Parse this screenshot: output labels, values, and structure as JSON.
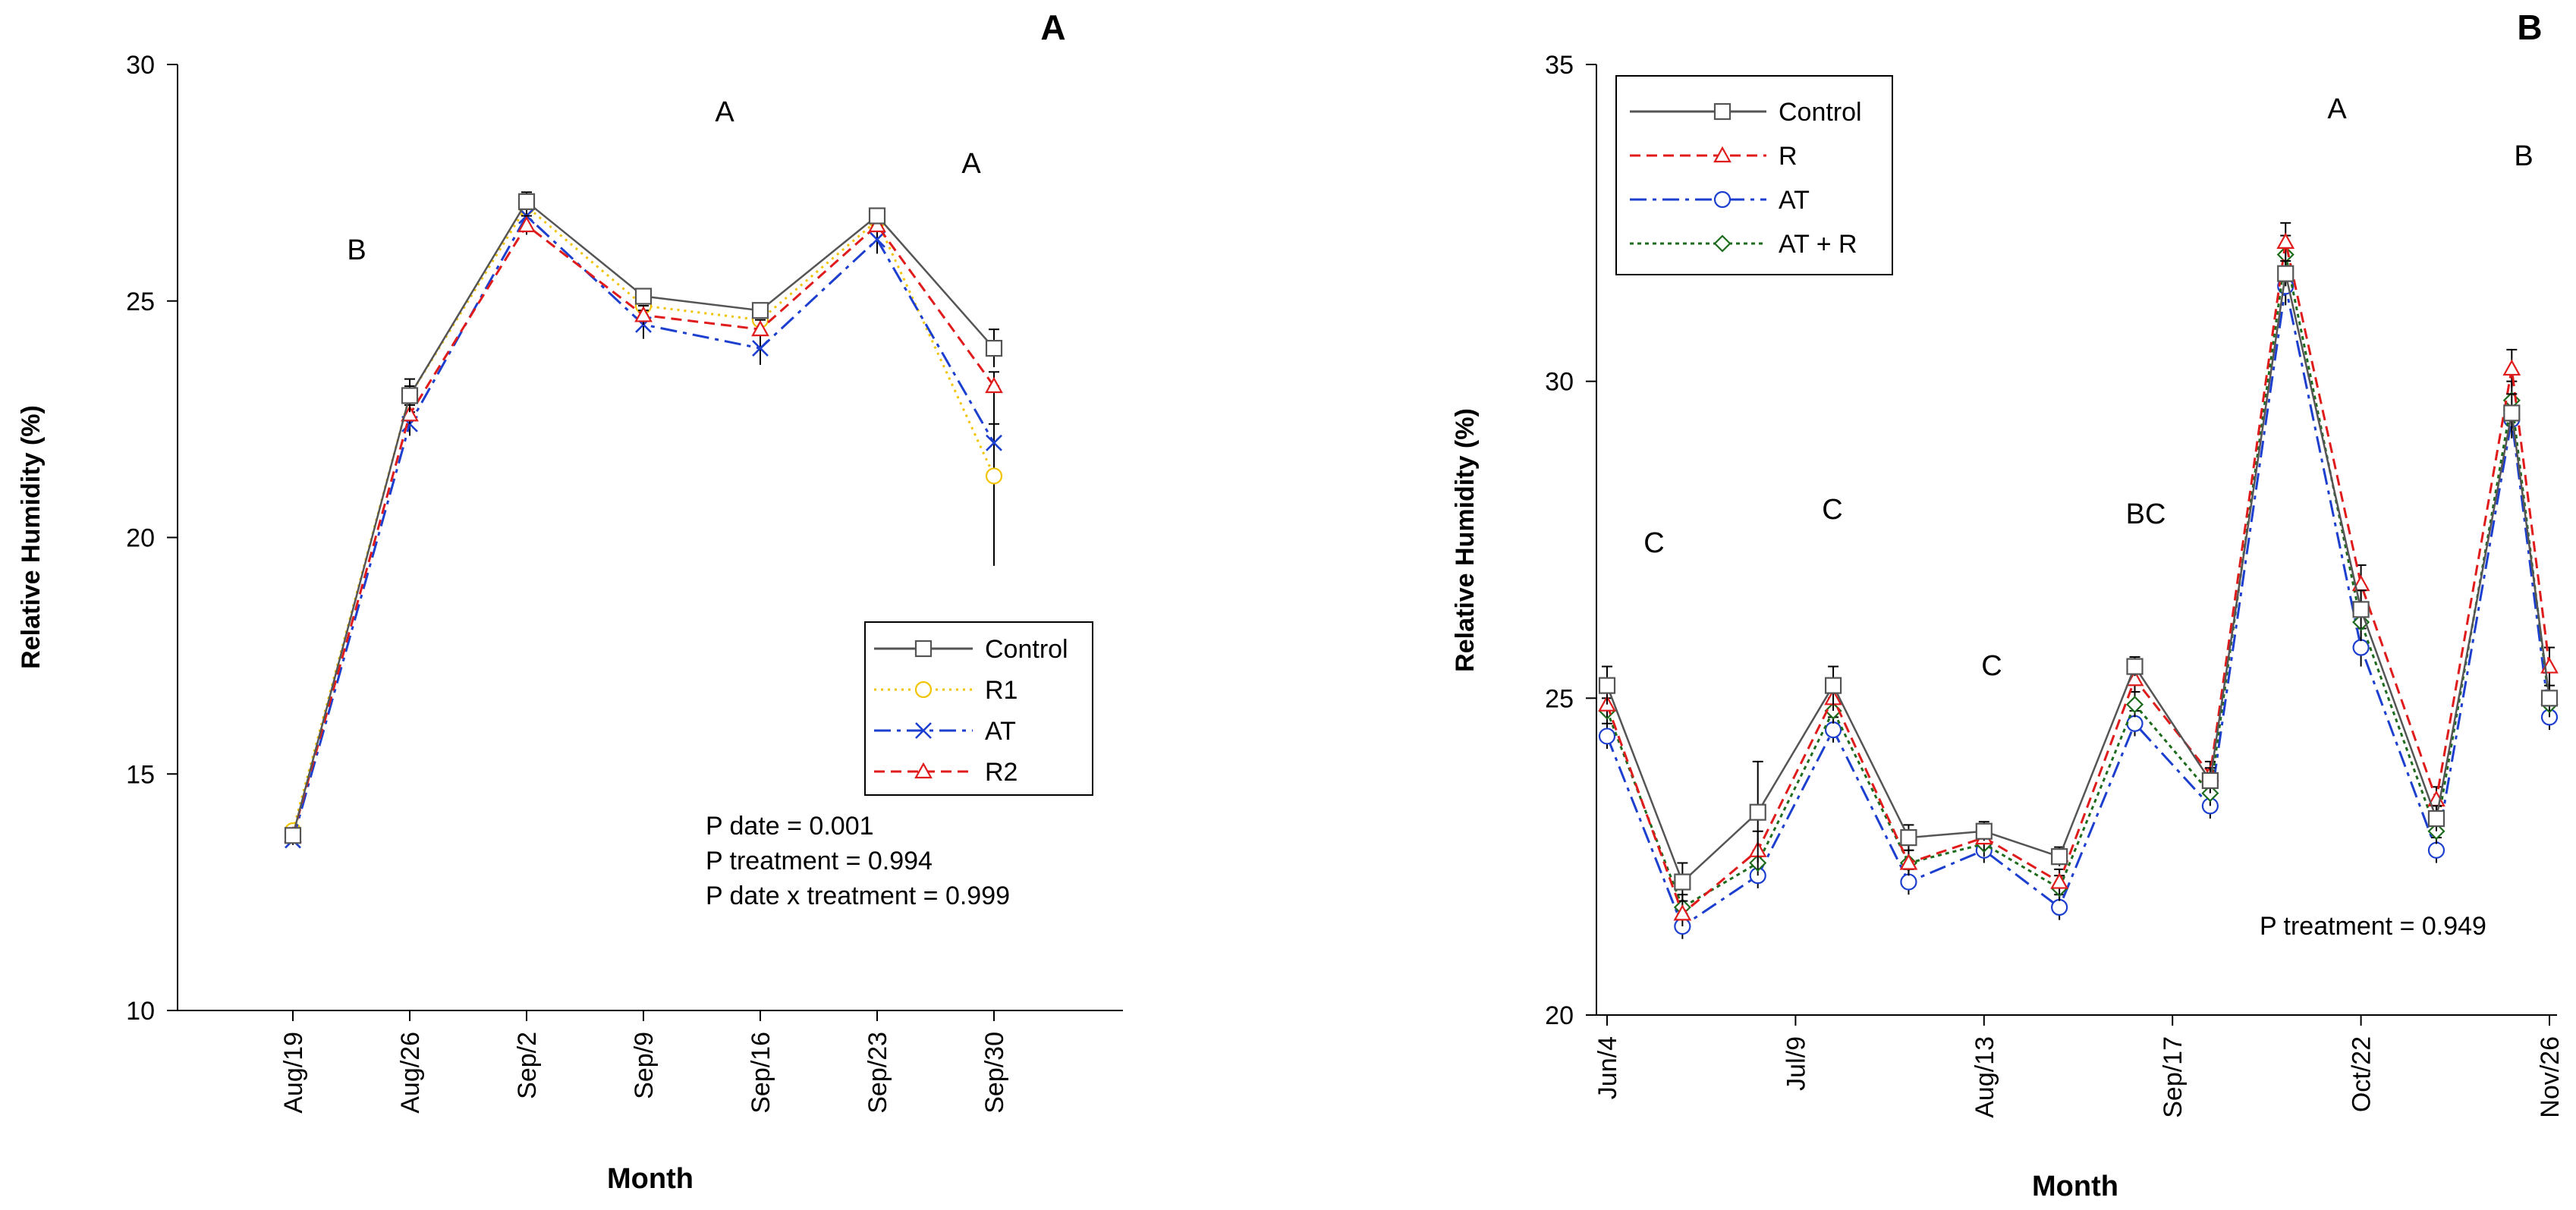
{
  "chart_data": [
    {
      "panel": "A",
      "type": "line",
      "xlabel": "Month",
      "ylabel": "Relative Humidity (%)",
      "ylim": [
        10,
        30
      ],
      "yticks": [
        10,
        15,
        20,
        25,
        30
      ],
      "categories": [
        "Aug/19",
        "Aug/26",
        "Sep/2",
        "Sep/9",
        "Sep/16",
        "Sep/23",
        "Sep/30"
      ],
      "letters": [
        "B",
        "A",
        "A"
      ],
      "legend_position": "lower-right",
      "stats": [
        "P date = 0.001",
        "P treatment = 0.994",
        "P date x treatment = 0.999"
      ],
      "series": [
        {
          "name": "Control",
          "marker": "square",
          "color": "#555555",
          "dash": "",
          "values": [
            13.7,
            23.0,
            27.1,
            25.1,
            24.8,
            26.8,
            24.0
          ],
          "err": [
            0.15,
            0.35,
            0.2,
            0.15,
            0.15,
            0.15,
            0.4
          ]
        },
        {
          "name": "R1",
          "marker": "circle",
          "color": "#f2c300",
          "dash": "3 6",
          "values": [
            13.8,
            23.0,
            27.0,
            24.9,
            24.6,
            26.7,
            21.3
          ],
          "err": [
            0.1,
            0.2,
            0.2,
            0.2,
            0.2,
            0.2,
            1.9
          ]
        },
        {
          "name": "AT",
          "marker": "x",
          "color": "#1c3fcf",
          "dash": "22 8 5 8",
          "values": [
            13.6,
            22.4,
            26.8,
            24.5,
            24.0,
            26.3,
            22.0
          ],
          "err": [
            0.1,
            0.25,
            0.2,
            0.3,
            0.35,
            0.3,
            0.4
          ]
        },
        {
          "name": "R2",
          "marker": "triangle",
          "color": "#e01b1b",
          "dash": "14 8",
          "values": [
            13.7,
            22.6,
            26.6,
            24.7,
            24.4,
            26.6,
            23.2
          ],
          "err": [
            0.1,
            0.2,
            0.2,
            0.2,
            0.2,
            0.2,
            0.3
          ]
        }
      ]
    },
    {
      "panel": "B",
      "type": "line",
      "xlabel": "Month",
      "ylabel": "Relative Humidity (%)",
      "ylim": [
        20,
        35
      ],
      "yticks": [
        20,
        25,
        30,
        35
      ],
      "x": [
        "Jun/4",
        "Jun/18",
        "Jul/2",
        "Jul/16",
        "Jul/30",
        "Aug/13",
        "Aug/27",
        "Sep/10",
        "Sep/24",
        "Oct/8",
        "Oct/22",
        "Nov/5",
        "Nov/19",
        "Nov/26"
      ],
      "xticks": [
        "Jun/4",
        "Jul/9",
        "Aug/13",
        "Sep/17",
        "Oct/22",
        "Nov/26"
      ],
      "xticks_day": [
        0,
        35,
        70,
        105,
        140,
        175
      ],
      "x_day": [
        0,
        14,
        28,
        42,
        56,
        70,
        84,
        98,
        112,
        126,
        140,
        154,
        168,
        175
      ],
      "letters": [
        "C",
        "C",
        "C",
        "BC",
        "A",
        "B"
      ],
      "legend_position": "top-left",
      "stats": [
        "P treatment = 0.949"
      ],
      "series": [
        {
          "name": "Control",
          "marker": "square",
          "color": "#555555",
          "dash": "",
          "values": [
            25.2,
            22.1,
            23.2,
            25.2,
            22.8,
            22.9,
            22.5,
            25.5,
            23.7,
            31.7,
            26.4,
            23.1,
            29.5,
            25.0
          ],
          "err": [
            0.3,
            0.3,
            0.8,
            0.3,
            0.2,
            0.15,
            0.15,
            0.15,
            0.2,
            0.2,
            0.3,
            0.2,
            0.3,
            0.2
          ]
        },
        {
          "name": "R",
          "marker": "triangle",
          "color": "#e01b1b",
          "dash": "14 8",
          "values": [
            24.9,
            21.6,
            22.6,
            25.0,
            22.4,
            22.8,
            22.1,
            25.3,
            23.8,
            32.2,
            26.8,
            23.4,
            30.2,
            25.5
          ],
          "err": [
            0.2,
            0.2,
            0.3,
            0.2,
            0.2,
            0.2,
            0.2,
            0.2,
            0.2,
            0.3,
            0.3,
            0.2,
            0.3,
            0.3
          ]
        },
        {
          "name": "AT",
          "marker": "circle",
          "color": "#1c3fcf",
          "dash": "22 8 5 8",
          "values": [
            24.4,
            21.4,
            22.2,
            24.5,
            22.1,
            22.6,
            21.7,
            24.6,
            23.3,
            31.5,
            25.8,
            22.6,
            29.4,
            24.7
          ],
          "err": [
            0.2,
            0.2,
            0.2,
            0.2,
            0.2,
            0.2,
            0.2,
            0.2,
            0.2,
            0.3,
            0.3,
            0.2,
            0.3,
            0.2
          ]
        },
        {
          "name": "AT + R",
          "marker": "diamond",
          "color": "#1d6b1d",
          "dash": "5 5",
          "values": [
            24.8,
            21.7,
            22.4,
            24.8,
            22.4,
            22.7,
            22.0,
            24.9,
            23.5,
            32.0,
            26.2,
            22.9,
            29.7,
            24.9
          ],
          "err": [
            0.2,
            0.2,
            0.2,
            0.2,
            0.2,
            0.2,
            0.2,
            0.2,
            0.2,
            0.3,
            0.3,
            0.2,
            0.3,
            0.2
          ]
        }
      ]
    }
  ]
}
